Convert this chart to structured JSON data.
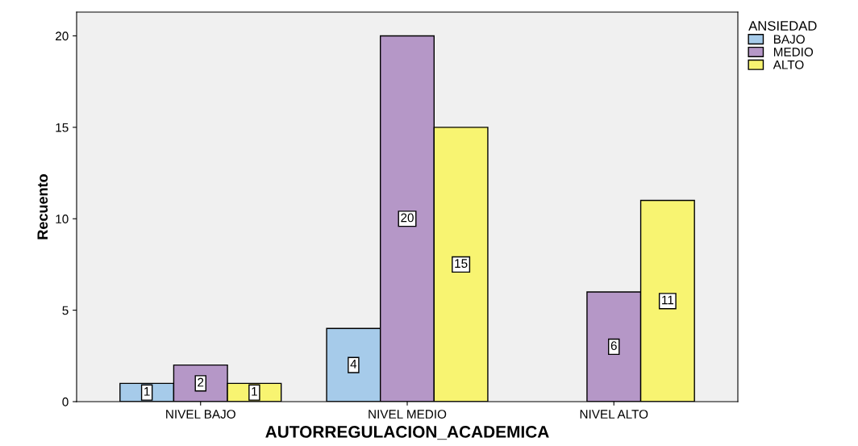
{
  "chart_data": {
    "type": "bar",
    "xlabel": "AUTORREGULACION_ACADEMICA",
    "ylabel": "Recuento",
    "legend_title": "ANSIEDAD",
    "categories": [
      "NIVEL BAJO",
      "NIVEL MEDIO",
      "NIVEL ALTO"
    ],
    "series": [
      {
        "name": "BAJO",
        "color": "#a6cbea",
        "values": [
          1,
          4,
          null
        ]
      },
      {
        "name": "MEDIO",
        "color": "#b597c7",
        "values": [
          2,
          20,
          6
        ]
      },
      {
        "name": "ALTO",
        "color": "#f8f471",
        "values": [
          1,
          15,
          11
        ]
      }
    ],
    "ylim": [
      0,
      21.3
    ],
    "yticks": [
      0,
      5,
      10,
      15,
      20
    ],
    "grid": false,
    "legend": "top right",
    "data_labels": true
  }
}
